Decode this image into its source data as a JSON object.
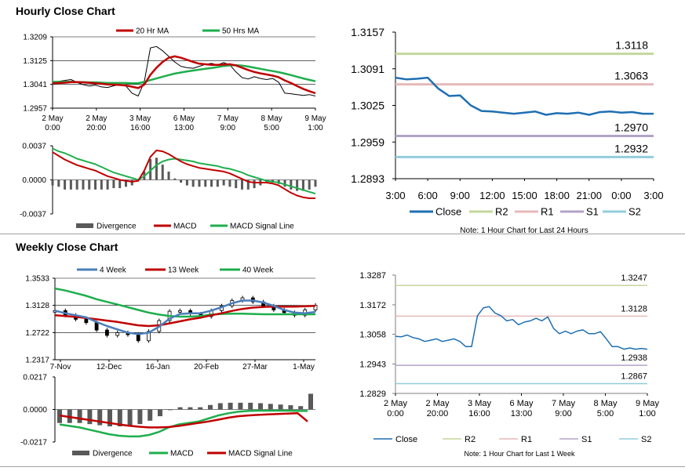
{
  "sections": {
    "hourly_title": "Hourly Close Chart",
    "weekly_title": "Weekly Close Chart"
  },
  "colors": {
    "red": "#c00000",
    "green": "#1fae4c",
    "blue": "#4a7ebb",
    "close_blue": "#1f6fb2",
    "r2": "#c4d79b",
    "r1": "#e6b9b8",
    "s1": "#b3a2c7",
    "s2": "#93cddd",
    "grey": "#808080",
    "black": "#000000"
  },
  "chart_data": [
    {
      "id": "hourly_price",
      "type": "line",
      "title": "Hourly Close Chart",
      "legend": [
        "20 Hr MA",
        "50 Hrs MA"
      ],
      "yticks": [
        "1.3209",
        "1.3125",
        "1.3041",
        "1.2957"
      ],
      "ylim": [
        1.2957,
        1.3209
      ],
      "xticks": [
        [
          "2 May",
          "0:00"
        ],
        [
          "2 May",
          "20:00"
        ],
        [
          "3 May",
          "16:00"
        ],
        [
          "6 May",
          "13:00"
        ],
        [
          "7 May",
          "9:00"
        ],
        [
          "8 May",
          "5:00"
        ],
        [
          "9 May",
          "1:00"
        ]
      ],
      "series": [
        {
          "name": "Price",
          "values": [
            1.3045,
            1.3052,
            1.3055,
            1.3058,
            1.3048,
            1.304,
            1.3035,
            1.3038,
            1.3032,
            1.303,
            1.3036,
            1.304,
            1.3035,
            1.301,
            1.3,
            1.305,
            1.317,
            1.3175,
            1.316,
            1.314,
            1.312,
            1.3105,
            1.31,
            1.3098,
            1.3105,
            1.3112,
            1.3115,
            1.311,
            1.3118,
            1.311,
            1.3085,
            1.3065,
            1.306,
            1.3068,
            1.3062,
            1.3058,
            1.3062,
            1.3048,
            1.301,
            1.3008,
            1.3005,
            1.3002,
            1.3005,
            1.3
          ]
        },
        {
          "name": "20 Hr MA",
          "values": [
            1.3045,
            1.3046,
            1.3047,
            1.3049,
            1.3049,
            1.3048,
            1.3047,
            1.3045,
            1.3043,
            1.3041,
            1.304,
            1.3039,
            1.3037,
            1.3033,
            1.3028,
            1.304,
            1.3075,
            1.31,
            1.312,
            1.3135,
            1.314,
            1.3135,
            1.3128,
            1.312,
            1.3114,
            1.3112,
            1.311,
            1.311,
            1.3111,
            1.3112,
            1.3108,
            1.31,
            1.3092,
            1.3085,
            1.308,
            1.3076,
            1.3072,
            1.3066,
            1.3055,
            1.3046,
            1.3035,
            1.3025,
            1.3017,
            1.301
          ]
        },
        {
          "name": "50 Hrs MA",
          "values": [
            1.305,
            1.305,
            1.305,
            1.305,
            1.3049,
            1.3049,
            1.3048,
            1.3048,
            1.3047,
            1.3046,
            1.3046,
            1.3046,
            1.3046,
            1.3045,
            1.3045,
            1.305,
            1.3056,
            1.3062,
            1.3068,
            1.3074,
            1.3079,
            1.3083,
            1.3087,
            1.309,
            1.3093,
            1.3096,
            1.3099,
            1.3102,
            1.3106,
            1.3108,
            1.3109,
            1.3107,
            1.3104,
            1.31,
            1.3096,
            1.3092,
            1.3088,
            1.3084,
            1.3079,
            1.3074,
            1.3068,
            1.3062,
            1.3057,
            1.3052
          ]
        }
      ]
    },
    {
      "id": "hourly_macd",
      "type": "line",
      "yticks": [
        "0.0037",
        "0.0000",
        "-0.0037"
      ],
      "ylim": [
        -0.0037,
        0.0037
      ],
      "legend": [
        "Divergence",
        "MACD",
        "MACD Signal Line"
      ],
      "series": [
        {
          "name": "MACD",
          "values": [
            0.003,
            0.0026,
            0.0022,
            0.0019,
            0.0016,
            0.0014,
            0.0012,
            0.001,
            0.0007,
            0.0004,
            0.0002,
            0.0,
            -0.0001,
            -0.0002,
            -0.0001,
            0.001,
            0.0025,
            0.0032,
            0.0031,
            0.0028,
            0.0024,
            0.002,
            0.0017,
            0.0015,
            0.0013,
            0.0012,
            0.0011,
            0.001,
            0.0009,
            0.0007,
            0.0004,
            0.0001,
            -0.0002,
            -0.0003,
            -0.0003,
            -0.0003,
            -0.0004,
            -0.0006,
            -0.001,
            -0.0014,
            -0.0017,
            -0.0019,
            -0.002,
            -0.002
          ]
        },
        {
          "name": "MACD Signal Line",
          "values": [
            0.0034,
            0.0031,
            0.0029,
            0.0026,
            0.0023,
            0.0021,
            0.0019,
            0.0017,
            0.0014,
            0.0011,
            0.0008,
            0.0006,
            0.0004,
            0.0002,
            0.0,
            0.0004,
            0.001,
            0.0016,
            0.002,
            0.0022,
            0.0023,
            0.0022,
            0.0021,
            0.002,
            0.0018,
            0.0017,
            0.0016,
            0.0015,
            0.0013,
            0.0012,
            0.001,
            0.0008,
            0.0005,
            0.0003,
            0.0001,
            -0.0001,
            -0.0002,
            -0.0003,
            -0.0005,
            -0.0007,
            -0.0009,
            -0.0011,
            -0.0013,
            -0.0015
          ]
        }
      ]
    },
    {
      "id": "hourly_levels",
      "type": "line",
      "yticks": [
        "1.3157",
        "1.3091",
        "1.3025",
        "1.2959",
        "1.2893"
      ],
      "ylim": [
        1.2893,
        1.3157
      ],
      "xticks": [
        "3:00",
        "6:00",
        "9:00",
        "12:00",
        "15:00",
        "18:00",
        "21:00",
        "0:00",
        "3:00"
      ],
      "levels": [
        {
          "name": "R2",
          "value": 1.3118,
          "label": "1.3118"
        },
        {
          "name": "R1",
          "value": 1.3063,
          "label": "1.3063"
        },
        {
          "name": "S1",
          "value": 1.297,
          "label": "1.2970"
        },
        {
          "name": "S2",
          "value": 1.2932,
          "label": "1.2932"
        }
      ],
      "legend": [
        "Close",
        "R2",
        "R1",
        "S1",
        "S2"
      ],
      "note": "Note: 1 Hour Chart for Last 24 Hours",
      "close": [
        1.3075,
        1.3072,
        1.3073,
        1.3075,
        1.3055,
        1.3042,
        1.3043,
        1.3025,
        1.3015,
        1.3014,
        1.3012,
        1.301,
        1.3012,
        1.3014,
        1.3008,
        1.3011,
        1.301,
        1.3012,
        1.3008,
        1.3013,
        1.3014,
        1.3012,
        1.3013,
        1.301,
        1.301
      ]
    },
    {
      "id": "weekly_price",
      "type": "line",
      "title": "Weekly Close Chart",
      "legend": [
        "4 Week",
        "13 Week",
        "40 Week"
      ],
      "yticks": [
        "1.3533",
        "1.3128",
        "1.2722",
        "1.2317"
      ],
      "ylim": [
        1.2317,
        1.3533
      ],
      "xticks": [
        "7-Nov",
        "12-Dec",
        "16-Jan",
        "20-Feb",
        "27-Mar",
        "1-May"
      ],
      "series": [
        {
          "name": "Price",
          "values": [
            1.305,
            1.298,
            1.292,
            1.287,
            1.276,
            1.268,
            1.272,
            1.269,
            1.26,
            1.274,
            1.29,
            1.304,
            1.305,
            1.3,
            1.296,
            1.305,
            1.312,
            1.32,
            1.324,
            1.318,
            1.312,
            1.306,
            1.302,
            1.298,
            1.306,
            1.313
          ]
        },
        {
          "name": "4 Week",
          "values": [
            1.305,
            1.301,
            1.298,
            1.295,
            1.288,
            1.282,
            1.277,
            1.272,
            1.27,
            1.272,
            1.281,
            1.293,
            1.3,
            1.301,
            1.301,
            1.305,
            1.31,
            1.316,
            1.32,
            1.32,
            1.317,
            1.312,
            1.306,
            1.302,
            1.301,
            1.303
          ]
        },
        {
          "name": "13 Week",
          "values": [
            1.298,
            1.297,
            1.2955,
            1.294,
            1.292,
            1.29,
            1.288,
            1.2855,
            1.283,
            1.282,
            1.283,
            1.286,
            1.289,
            1.292,
            1.2945,
            1.298,
            1.301,
            1.3045,
            1.3075,
            1.3095,
            1.3105,
            1.311,
            1.311,
            1.311,
            1.3115,
            1.312
          ]
        },
        {
          "name": "40 Week",
          "values": [
            1.338,
            1.335,
            1.331,
            1.327,
            1.322,
            1.318,
            1.314,
            1.31,
            1.306,
            1.302,
            1.299,
            1.297,
            1.296,
            1.296,
            1.297,
            1.299,
            1.3,
            1.3005,
            1.3005,
            1.3,
            1.2995,
            1.2995,
            1.2995,
            1.2995,
            1.2995,
            1.2995
          ]
        }
      ]
    },
    {
      "id": "weekly_macd",
      "type": "line",
      "yticks": [
        "0.0217",
        "0.0000",
        "-0.0217"
      ],
      "ylim": [
        -0.0217,
        0.0217
      ],
      "legend": [
        "Divergence",
        "MACD",
        "MACD Signal Line"
      ],
      "series": [
        {
          "name": "MACD",
          "values": [
            -0.01,
            -0.011,
            -0.012,
            -0.0135,
            -0.015,
            -0.0165,
            -0.0175,
            -0.018,
            -0.018,
            -0.017,
            -0.015,
            -0.012,
            -0.01,
            -0.009,
            -0.008,
            -0.006,
            -0.004,
            -0.0025,
            -0.0015,
            -0.001,
            -0.0008,
            -0.0008,
            -0.0008,
            -0.0008,
            -0.001,
            -0.001
          ]
        },
        {
          "name": "MACD Signal Line",
          "values": [
            -0.004,
            -0.005,
            -0.006,
            -0.007,
            -0.008,
            -0.009,
            -0.01,
            -0.0108,
            -0.0115,
            -0.012,
            -0.012,
            -0.0117,
            -0.011,
            -0.01,
            -0.009,
            -0.008,
            -0.0068,
            -0.0055,
            -0.0045,
            -0.004,
            -0.0036,
            -0.0033,
            -0.003,
            -0.0027,
            -0.0025,
            -0.008
          ]
        }
      ]
    },
    {
      "id": "weekly_levels",
      "type": "line",
      "yticks": [
        "1.3287",
        "1.3172",
        "1.3058",
        "1.2943",
        "1.2829"
      ],
      "ylim": [
        1.2829,
        1.3287
      ],
      "xticks": [
        [
          "2 May",
          "0:00"
        ],
        [
          "2 May",
          "20:00"
        ],
        [
          "3 May",
          "16:00"
        ],
        [
          "6 May",
          "13:00"
        ],
        [
          "7 May",
          "9:00"
        ],
        [
          "8 May",
          "5:00"
        ],
        [
          "9 May",
          "1:00"
        ]
      ],
      "levels": [
        {
          "name": "R2",
          "value": 1.3247,
          "label": "1.3247"
        },
        {
          "name": "R1",
          "value": 1.3128,
          "label": "1.3128"
        },
        {
          "name": "S1",
          "value": 1.2938,
          "label": "1.2938"
        },
        {
          "name": "S2",
          "value": 1.2867,
          "label": "1.2867"
        }
      ],
      "legend": [
        "Close",
        "R2",
        "R1",
        "S1",
        "S2"
      ],
      "note": "Note: 1 Hour Chart for Last 1 Week",
      "close": [
        1.305,
        1.3048,
        1.3055,
        1.3045,
        1.304,
        1.303,
        1.3035,
        1.304,
        1.303,
        1.3035,
        1.304,
        1.303,
        1.301,
        1.301,
        1.313,
        1.316,
        1.3165,
        1.314,
        1.313,
        1.311,
        1.3115,
        1.3095,
        1.3105,
        1.311,
        1.312,
        1.311,
        1.3125,
        1.308,
        1.306,
        1.307,
        1.306,
        1.307,
        1.3075,
        1.306,
        1.306,
        1.3068,
        1.304,
        1.301,
        1.301,
        1.3,
        1.3005,
        1.3,
        1.3003,
        1.3
      ]
    }
  ]
}
